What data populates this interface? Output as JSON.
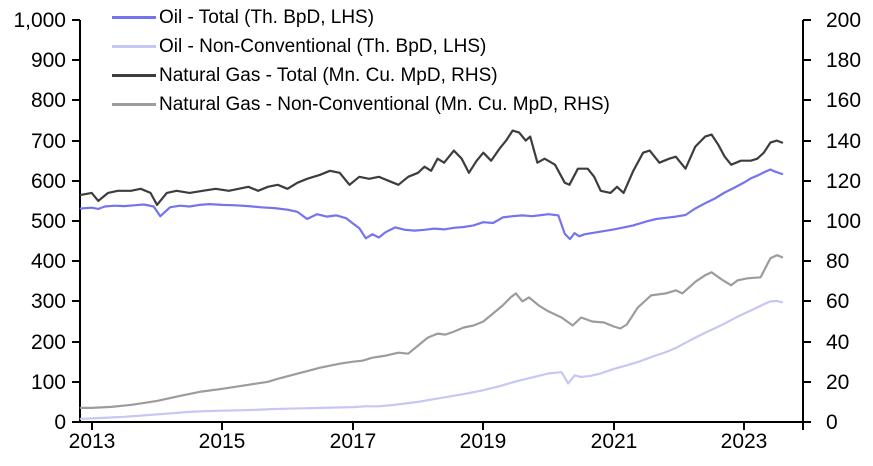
{
  "chart_data": {
    "type": "line",
    "title": "",
    "background": "#ffffff",
    "axis_color": "#000000",
    "text_color": "#000000",
    "grid": false,
    "legend_position": "top-left",
    "x_axis": {
      "min": 2012.82,
      "max": 2023.9,
      "ticks": [
        2013,
        2015,
        2017,
        2019,
        2021,
        2023
      ],
      "tick_labels": [
        "2013",
        "2015",
        "2017",
        "2019",
        "2021",
        "2023"
      ]
    },
    "left_axis": {
      "label": "Th. BpD",
      "min": 0,
      "max": 1000,
      "step": 100,
      "tick_labels": [
        "0",
        "100",
        "200",
        "300",
        "400",
        "500",
        "600",
        "700",
        "800",
        "900",
        "1,000"
      ]
    },
    "right_axis": {
      "label": "Mn. Cu. MpD",
      "min": 0,
      "max": 200,
      "step": 20,
      "tick_labels": [
        "0",
        "20",
        "40",
        "60",
        "80",
        "100",
        "120",
        "140",
        "160",
        "180",
        "200"
      ]
    },
    "series": [
      {
        "name": "Oil - Total (Th. BpD, LHS)",
        "axis": "LHS",
        "color": "#7474EF",
        "points": [
          [
            2012.83,
            531
          ],
          [
            2013.0,
            533
          ],
          [
            2013.1,
            530
          ],
          [
            2013.2,
            536
          ],
          [
            2013.35,
            538
          ],
          [
            2013.5,
            537
          ],
          [
            2013.65,
            539
          ],
          [
            2013.8,
            541
          ],
          [
            2013.95,
            536
          ],
          [
            2014.05,
            512
          ],
          [
            2014.2,
            534
          ],
          [
            2014.35,
            538
          ],
          [
            2014.5,
            536
          ],
          [
            2014.65,
            540
          ],
          [
            2014.8,
            542
          ],
          [
            2015.0,
            540
          ],
          [
            2015.2,
            539
          ],
          [
            2015.4,
            537
          ],
          [
            2015.6,
            534
          ],
          [
            2015.8,
            532
          ],
          [
            2016.0,
            528
          ],
          [
            2016.15,
            523
          ],
          [
            2016.3,
            505
          ],
          [
            2016.45,
            517
          ],
          [
            2016.6,
            511
          ],
          [
            2016.75,
            514
          ],
          [
            2016.9,
            507
          ],
          [
            2017.0,
            494
          ],
          [
            2017.1,
            482
          ],
          [
            2017.2,
            457
          ],
          [
            2017.3,
            467
          ],
          [
            2017.4,
            459
          ],
          [
            2017.5,
            472
          ],
          [
            2017.65,
            484
          ],
          [
            2017.8,
            478
          ],
          [
            2017.95,
            476
          ],
          [
            2018.1,
            478
          ],
          [
            2018.25,
            481
          ],
          [
            2018.4,
            479
          ],
          [
            2018.55,
            483
          ],
          [
            2018.7,
            485
          ],
          [
            2018.85,
            489
          ],
          [
            2019.0,
            497
          ],
          [
            2019.15,
            495
          ],
          [
            2019.3,
            509
          ],
          [
            2019.45,
            512
          ],
          [
            2019.6,
            514
          ],
          [
            2019.75,
            512
          ],
          [
            2019.9,
            515
          ],
          [
            2020.0,
            517
          ],
          [
            2020.15,
            514
          ],
          [
            2020.25,
            468
          ],
          [
            2020.33,
            455
          ],
          [
            2020.4,
            470
          ],
          [
            2020.47,
            462
          ],
          [
            2020.55,
            467
          ],
          [
            2020.7,
            471
          ],
          [
            2020.85,
            475
          ],
          [
            2021.0,
            479
          ],
          [
            2021.15,
            484
          ],
          [
            2021.3,
            489
          ],
          [
            2021.4,
            494
          ],
          [
            2021.5,
            499
          ],
          [
            2021.65,
            505
          ],
          [
            2021.8,
            508
          ],
          [
            2021.95,
            511
          ],
          [
            2022.1,
            515
          ],
          [
            2022.25,
            531
          ],
          [
            2022.4,
            544
          ],
          [
            2022.55,
            556
          ],
          [
            2022.7,
            571
          ],
          [
            2022.85,
            583
          ],
          [
            2023.0,
            596
          ],
          [
            2023.1,
            606
          ],
          [
            2023.2,
            613
          ],
          [
            2023.3,
            621
          ],
          [
            2023.4,
            628
          ],
          [
            2023.47,
            623
          ],
          [
            2023.58,
            617
          ]
        ]
      },
      {
        "name": "Oil - Non-Conventional (Th. BpD, LHS)",
        "axis": "LHS",
        "color": "#C7C7F5",
        "points": [
          [
            2012.83,
            8
          ],
          [
            2013.0,
            9
          ],
          [
            2013.25,
            11
          ],
          [
            2013.5,
            13
          ],
          [
            2013.75,
            16
          ],
          [
            2014.0,
            19
          ],
          [
            2014.25,
            22
          ],
          [
            2014.5,
            25
          ],
          [
            2014.75,
            27
          ],
          [
            2015.0,
            28
          ],
          [
            2015.25,
            29
          ],
          [
            2015.5,
            30
          ],
          [
            2015.75,
            32
          ],
          [
            2016.0,
            33
          ],
          [
            2016.25,
            34
          ],
          [
            2016.5,
            35
          ],
          [
            2016.75,
            36
          ],
          [
            2017.0,
            37
          ],
          [
            2017.2,
            39
          ],
          [
            2017.4,
            39
          ],
          [
            2017.6,
            42
          ],
          [
            2017.8,
            46
          ],
          [
            2018.0,
            50
          ],
          [
            2018.25,
            57
          ],
          [
            2018.5,
            64
          ],
          [
            2018.75,
            71
          ],
          [
            2019.0,
            79
          ],
          [
            2019.25,
            89
          ],
          [
            2019.5,
            101
          ],
          [
            2019.75,
            111
          ],
          [
            2020.0,
            121
          ],
          [
            2020.2,
            124
          ],
          [
            2020.3,
            96
          ],
          [
            2020.4,
            116
          ],
          [
            2020.5,
            112
          ],
          [
            2020.65,
            115
          ],
          [
            2020.8,
            121
          ],
          [
            2021.0,
            132
          ],
          [
            2021.2,
            141
          ],
          [
            2021.4,
            151
          ],
          [
            2021.6,
            163
          ],
          [
            2021.8,
            174
          ],
          [
            2021.95,
            184
          ],
          [
            2022.1,
            197
          ],
          [
            2022.25,
            210
          ],
          [
            2022.4,
            222
          ],
          [
            2022.55,
            233
          ],
          [
            2022.7,
            245
          ],
          [
            2022.85,
            258
          ],
          [
            2023.0,
            270
          ],
          [
            2023.15,
            281
          ],
          [
            2023.3,
            293
          ],
          [
            2023.4,
            300
          ],
          [
            2023.5,
            301
          ],
          [
            2023.58,
            298
          ]
        ]
      },
      {
        "name": "Natural Gas - Total (Mn. Cu. MpD, RHS)",
        "axis": "RHS",
        "color": "#3D3D3D",
        "points": [
          [
            2012.83,
            113
          ],
          [
            2013.0,
            114
          ],
          [
            2013.1,
            110
          ],
          [
            2013.25,
            114
          ],
          [
            2013.4,
            115
          ],
          [
            2013.6,
            115
          ],
          [
            2013.75,
            116
          ],
          [
            2013.9,
            114
          ],
          [
            2014.0,
            108
          ],
          [
            2014.15,
            114
          ],
          [
            2014.3,
            115
          ],
          [
            2014.5,
            114
          ],
          [
            2014.7,
            115
          ],
          [
            2014.9,
            116
          ],
          [
            2015.1,
            115
          ],
          [
            2015.25,
            116
          ],
          [
            2015.4,
            117
          ],
          [
            2015.55,
            115
          ],
          [
            2015.7,
            117
          ],
          [
            2015.85,
            118
          ],
          [
            2016.0,
            116
          ],
          [
            2016.15,
            119
          ],
          [
            2016.3,
            121
          ],
          [
            2016.5,
            123
          ],
          [
            2016.65,
            125
          ],
          [
            2016.8,
            124
          ],
          [
            2016.95,
            118
          ],
          [
            2017.1,
            122
          ],
          [
            2017.25,
            121
          ],
          [
            2017.4,
            122
          ],
          [
            2017.55,
            120
          ],
          [
            2017.7,
            118
          ],
          [
            2017.85,
            122
          ],
          [
            2018.0,
            124
          ],
          [
            2018.1,
            127
          ],
          [
            2018.2,
            125
          ],
          [
            2018.3,
            131
          ],
          [
            2018.4,
            129
          ],
          [
            2018.55,
            135
          ],
          [
            2018.67,
            131
          ],
          [
            2018.78,
            124
          ],
          [
            2018.9,
            130
          ],
          [
            2019.0,
            134
          ],
          [
            2019.12,
            130
          ],
          [
            2019.25,
            136
          ],
          [
            2019.35,
            140
          ],
          [
            2019.45,
            145
          ],
          [
            2019.55,
            144
          ],
          [
            2019.65,
            140
          ],
          [
            2019.72,
            142
          ],
          [
            2019.83,
            129
          ],
          [
            2019.94,
            131
          ],
          [
            2020.1,
            128
          ],
          [
            2020.25,
            119
          ],
          [
            2020.32,
            118
          ],
          [
            2020.45,
            126
          ],
          [
            2020.6,
            126
          ],
          [
            2020.7,
            122
          ],
          [
            2020.8,
            115
          ],
          [
            2020.95,
            114
          ],
          [
            2021.05,
            117
          ],
          [
            2021.15,
            114
          ],
          [
            2021.3,
            125
          ],
          [
            2021.45,
            134
          ],
          [
            2021.55,
            135
          ],
          [
            2021.7,
            129
          ],
          [
            2021.85,
            131
          ],
          [
            2021.95,
            132
          ],
          [
            2022.1,
            126
          ],
          [
            2022.25,
            137
          ],
          [
            2022.4,
            142
          ],
          [
            2022.5,
            143
          ],
          [
            2022.6,
            138
          ],
          [
            2022.7,
            132
          ],
          [
            2022.8,
            128
          ],
          [
            2022.95,
            130
          ],
          [
            2023.1,
            130
          ],
          [
            2023.2,
            131
          ],
          [
            2023.3,
            134
          ],
          [
            2023.4,
            139
          ],
          [
            2023.5,
            140
          ],
          [
            2023.58,
            139
          ]
        ]
      },
      {
        "name": "Natural Gas - Non-Conventional (Mn. Cu. MpD, RHS)",
        "axis": "RHS",
        "color": "#9C9C9C",
        "points": [
          [
            2012.83,
            7
          ],
          [
            2013.0,
            7
          ],
          [
            2013.3,
            7.5
          ],
          [
            2013.6,
            8.5
          ],
          [
            2014.0,
            10.5
          ],
          [
            2014.35,
            13
          ],
          [
            2014.65,
            15
          ],
          [
            2015.0,
            16.5
          ],
          [
            2015.4,
            18.5
          ],
          [
            2015.7,
            20
          ],
          [
            2015.85,
            21.5
          ],
          [
            2016.2,
            24.5
          ],
          [
            2016.5,
            27
          ],
          [
            2016.8,
            29
          ],
          [
            2017.0,
            30
          ],
          [
            2017.15,
            30.5
          ],
          [
            2017.3,
            32
          ],
          [
            2017.5,
            33
          ],
          [
            2017.7,
            34.5
          ],
          [
            2017.85,
            34
          ],
          [
            2018.0,
            38
          ],
          [
            2018.15,
            42
          ],
          [
            2018.3,
            44
          ],
          [
            2018.42,
            43.5
          ],
          [
            2018.55,
            45
          ],
          [
            2018.7,
            47
          ],
          [
            2018.85,
            48
          ],
          [
            2019.0,
            50
          ],
          [
            2019.15,
            54
          ],
          [
            2019.3,
            58
          ],
          [
            2019.42,
            62
          ],
          [
            2019.5,
            64
          ],
          [
            2019.6,
            60
          ],
          [
            2019.7,
            62
          ],
          [
            2019.85,
            58
          ],
          [
            2020.0,
            55
          ],
          [
            2020.2,
            52
          ],
          [
            2020.37,
            48
          ],
          [
            2020.5,
            52
          ],
          [
            2020.67,
            50
          ],
          [
            2020.85,
            49.5
          ],
          [
            2021.0,
            47.5
          ],
          [
            2021.1,
            46.5
          ],
          [
            2021.2,
            48.5
          ],
          [
            2021.37,
            57
          ],
          [
            2021.57,
            63
          ],
          [
            2021.8,
            64
          ],
          [
            2021.95,
            65.5
          ],
          [
            2022.05,
            64
          ],
          [
            2022.26,
            70
          ],
          [
            2022.4,
            73
          ],
          [
            2022.5,
            74.5
          ],
          [
            2022.65,
            71
          ],
          [
            2022.8,
            68
          ],
          [
            2022.9,
            70.5
          ],
          [
            2023.05,
            71.5
          ],
          [
            2023.25,
            72
          ],
          [
            2023.4,
            81.5
          ],
          [
            2023.5,
            83
          ],
          [
            2023.58,
            82
          ]
        ]
      }
    ]
  }
}
